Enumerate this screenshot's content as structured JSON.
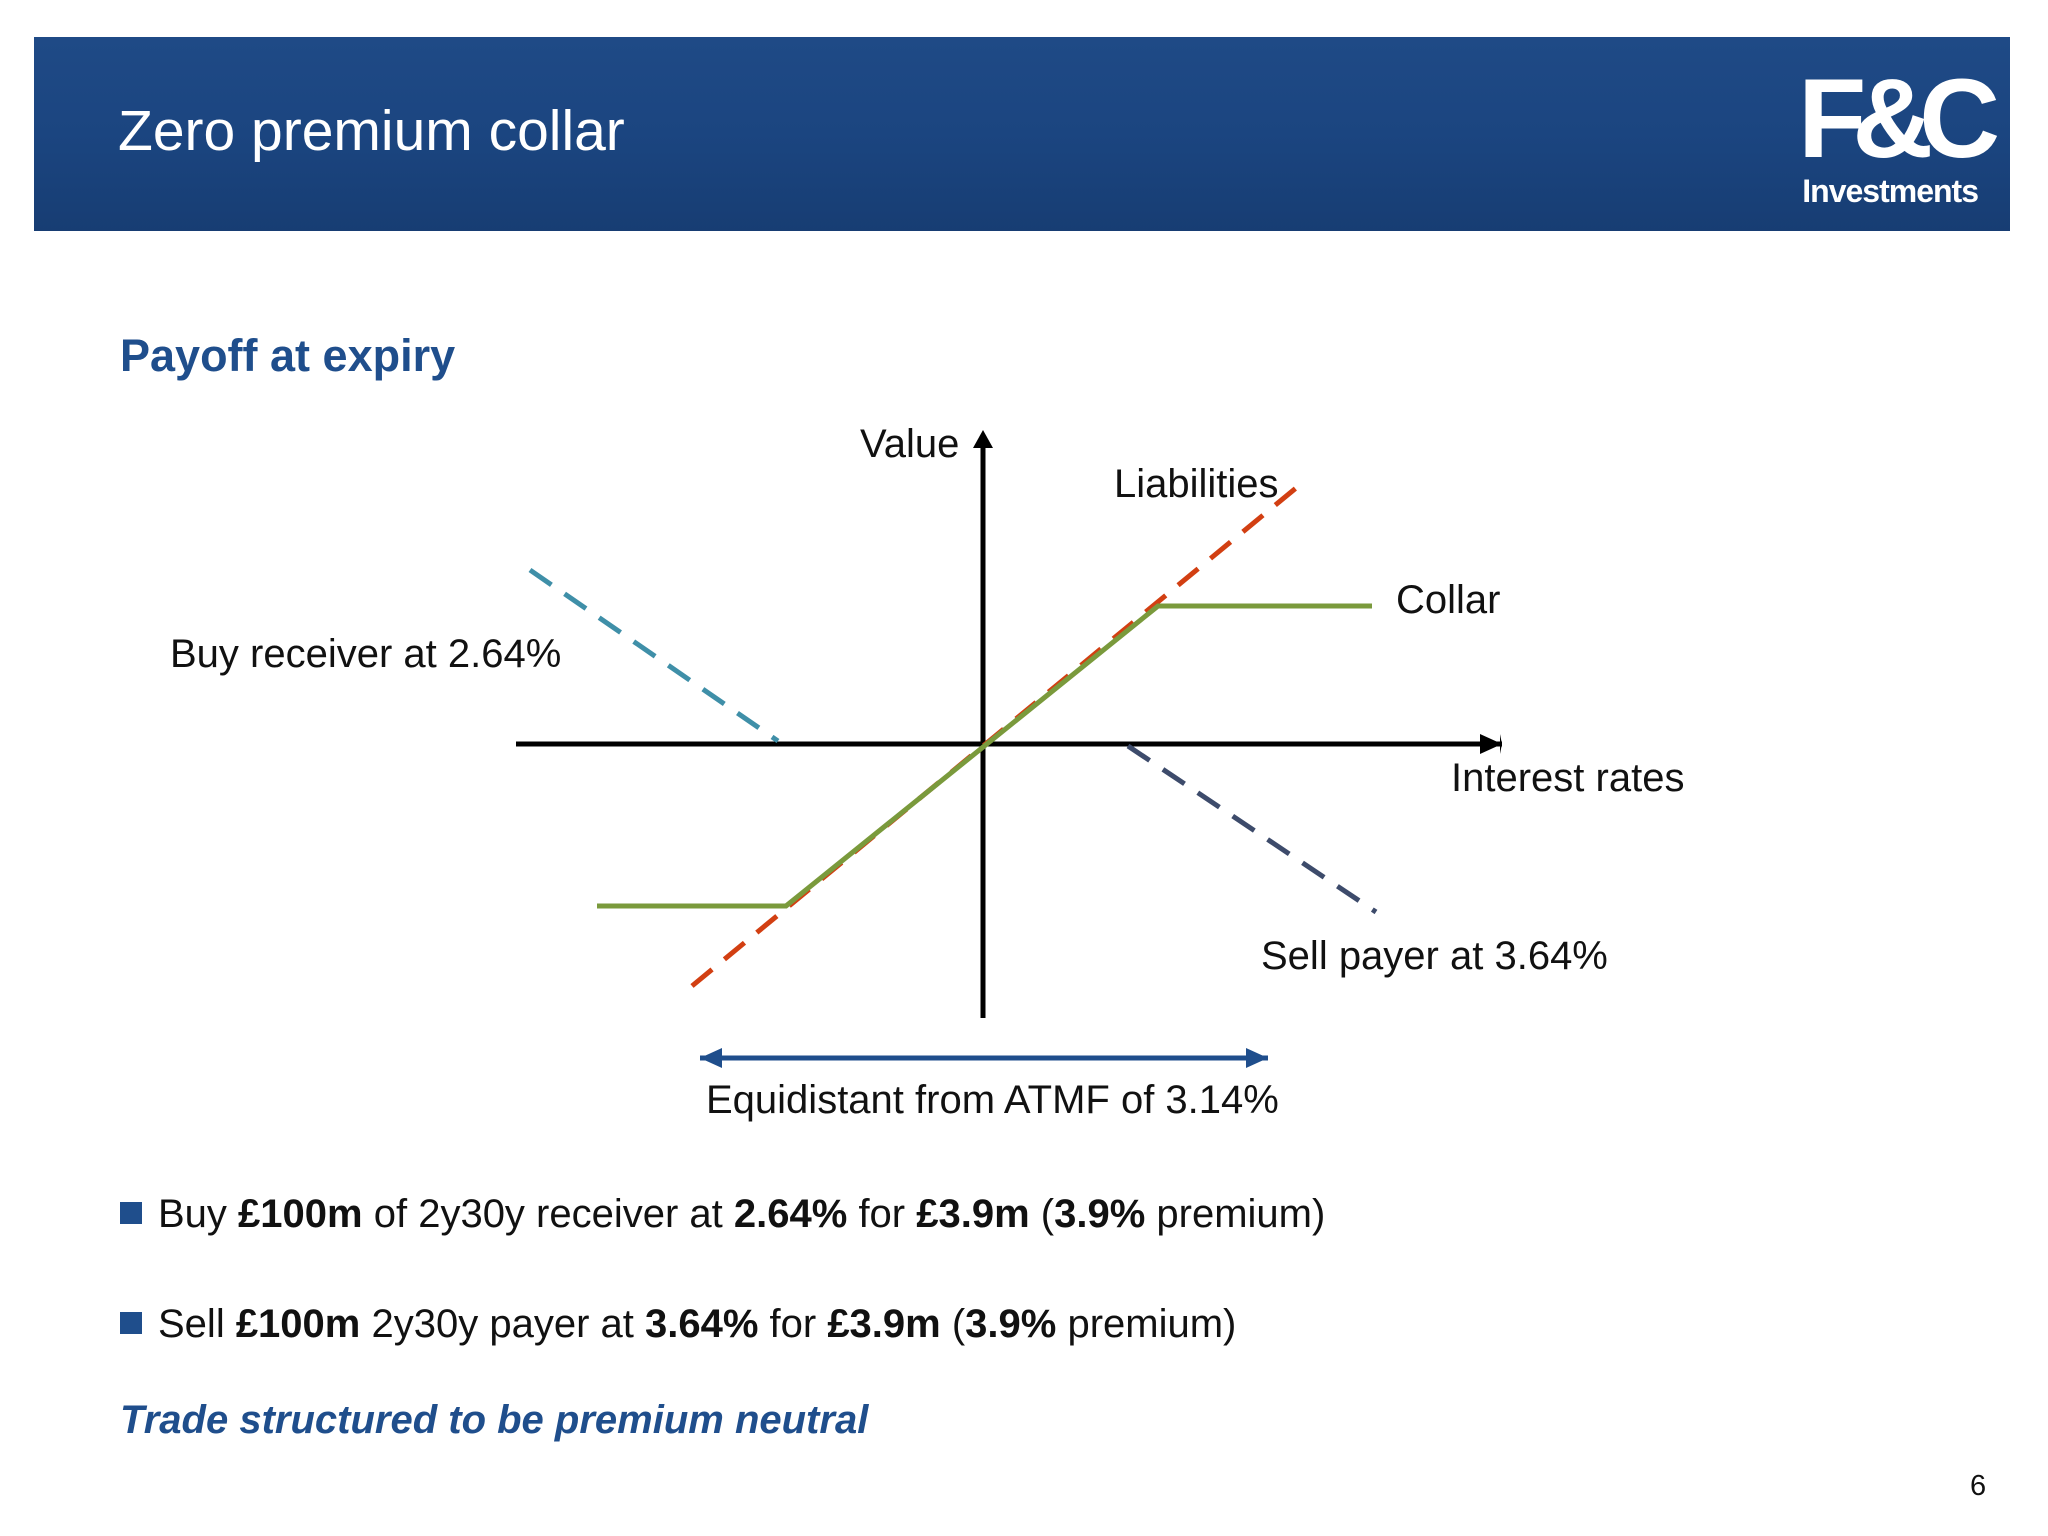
{
  "header": {
    "title": "Zero premium collar",
    "logo_mark": "F&C",
    "logo_sub": "Investments"
  },
  "subtitle": "Payoff at expiry",
  "diagram": {
    "y_axis_label": "Value",
    "x_axis_label": "Interest rates",
    "liabilities_label": "Liabilities",
    "collar_label": "Collar",
    "receiver_label": "Buy receiver at 2.64%",
    "payer_label": "Sell payer at 3.64%",
    "range_label": "Equidistant from ATMF of 3.14%",
    "colors": {
      "axis": "#000000",
      "liabilities": "#d23f12",
      "collar": "#7a9a3c",
      "receiver": "#3f8fa8",
      "payer": "#3d4b6b",
      "range_arrow": "#1f4e8c"
    }
  },
  "bullets": [
    {
      "p1": "Buy ",
      "b1": "£100m",
      "p2": " of 2y30y receiver at ",
      "b2": "2.64%",
      "p3": " for ",
      "b3": "£3.9m",
      "p4": " (",
      "b4": "3.9%",
      "p5": " premium)"
    },
    {
      "p1": "Sell ",
      "b1": "£100m",
      "p2": " 2y30y payer at ",
      "b2": "3.64%",
      "p3": " for ",
      "b3": "£3.9m",
      "p4": " (",
      "b4": "3.9%",
      "p5": " premium)"
    }
  ],
  "note": "Trade structured to be premium neutral",
  "page_number": "6"
}
